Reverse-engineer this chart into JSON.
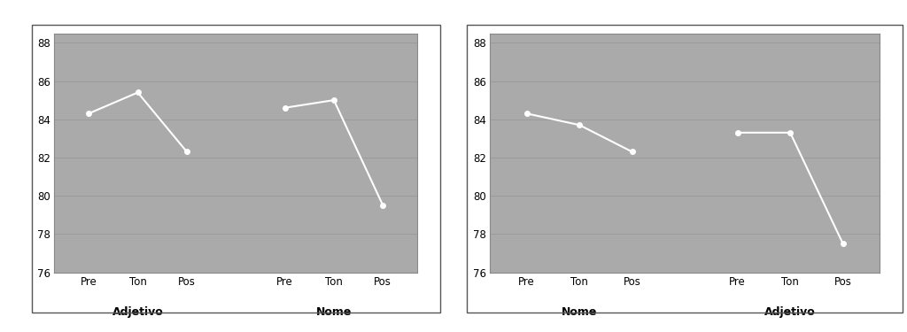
{
  "chart1": {
    "group1_data": [
      84.3,
      85.4,
      82.3
    ],
    "group2_data": [
      84.6,
      85.0,
      79.5
    ],
    "group1_label": "Adjetivo",
    "group2_label": "Nome",
    "xtick_labels": [
      "Pre",
      "Ton",
      "Pos",
      "Pre",
      "Ton",
      "Pos"
    ],
    "ylim": [
      76,
      88.5
    ],
    "yticks": [
      76,
      78,
      80,
      82,
      84,
      86,
      88
    ]
  },
  "chart2": {
    "group1_data": [
      84.3,
      83.7,
      82.3
    ],
    "group2_data": [
      83.3,
      83.3,
      77.5
    ],
    "group1_label": "Nome",
    "group2_label": "Adjetivo",
    "xtick_labels": [
      "Pre",
      "Ton",
      "Pos",
      "Pre",
      "Ton",
      "Pos"
    ],
    "ylim": [
      76,
      88.5
    ],
    "yticks": [
      76,
      78,
      80,
      82,
      84,
      86,
      88
    ]
  },
  "line_color": "#ffffff",
  "bg_color": "#aaaaaa",
  "fig_bg": "#ffffff",
  "panel_bg": "#ffffff",
  "line_width": 1.5,
  "marker": "o",
  "marker_size": 4,
  "group_label_fontsize": 9,
  "tick_label_fontsize": 8.5,
  "ytick_fontsize": 8.5,
  "grid_color": "#999999",
  "spine_color": "#888888"
}
